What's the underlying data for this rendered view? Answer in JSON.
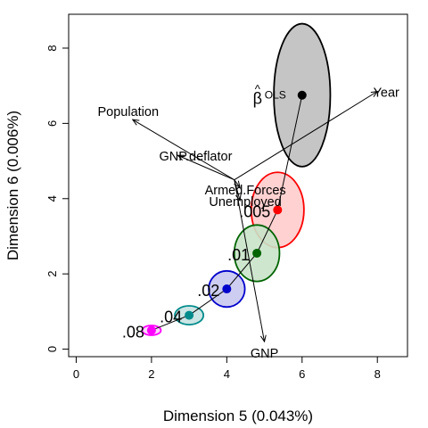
{
  "chart_data": {
    "type": "scatter",
    "title": "",
    "xlabel": "Dimension 5 (0.043%)",
    "ylabel": "Dimension 6 (0.006%)",
    "xlim": [
      -0.2,
      8.8
    ],
    "ylim": [
      -0.2,
      8.9
    ],
    "x_ticks": [
      0,
      2,
      4,
      6,
      8
    ],
    "y_ticks": [
      0,
      2,
      4,
      6,
      8
    ],
    "grid": false,
    "origin": {
      "x": 4.2,
      "y": 4.5
    },
    "estimates": [
      {
        "label": "OLS",
        "x": 6.0,
        "y": 6.75,
        "rx": 0.75,
        "ry": 1.9,
        "color": "#000000",
        "fill": "#bfbfbf"
      },
      {
        "label": ".005",
        "x": 5.35,
        "y": 3.7,
        "rx": 0.7,
        "ry": 1.0,
        "color": "#ff0000",
        "fill": "#ffcccc"
      },
      {
        "label": ".01",
        "x": 4.8,
        "y": 2.55,
        "rx": 0.6,
        "ry": 0.75,
        "color": "#006400",
        "fill": "#c9e3c9"
      },
      {
        "label": ".02",
        "x": 4.0,
        "y": 1.6,
        "rx": 0.48,
        "ry": 0.48,
        "color": "#0000cd",
        "fill": "#c8c8f0"
      },
      {
        "label": ".04",
        "x": 3.0,
        "y": 0.9,
        "rx": 0.38,
        "ry": 0.25,
        "color": "#008b8b",
        "fill": "#c6e2e2"
      },
      {
        "label": ".08",
        "x": 2.0,
        "y": 0.5,
        "rx": 0.25,
        "ry": 0.13,
        "color": "#ff00ff",
        "fill": "#fbd0fb"
      }
    ],
    "vectors": [
      {
        "label": "Year",
        "x": 8.0,
        "y": 6.85
      },
      {
        "label": "Population",
        "x": 1.5,
        "y": 6.1
      },
      {
        "label": "GNP.deflator",
        "x": 2.7,
        "y": 5.15
      },
      {
        "label": "Armed.Forces",
        "x": 4.35,
        "y": 4.3
      },
      {
        "label": "Unemployed",
        "x": 4.35,
        "y": 3.95
      },
      {
        "label": "GNP",
        "x": 5.0,
        "y": 0.2
      }
    ],
    "beta_label": {
      "symbol": "β",
      "hat": "^"
    }
  }
}
